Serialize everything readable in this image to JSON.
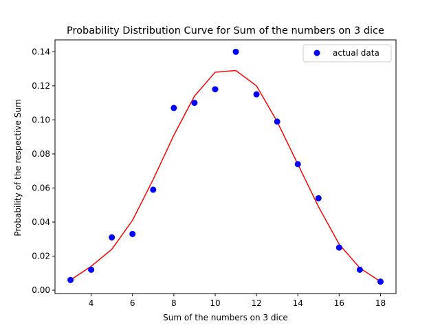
{
  "chart_data": {
    "type": "scatter",
    "title": "Probability Distribution Curve for Sum of the numbers on 3 dice",
    "xlabel": "Sum of the numbers on 3 dice",
    "ylabel": "Probability of the respective Sum",
    "xlim": [
      2.25,
      18.75
    ],
    "ylim": [
      -0.002,
      0.147
    ],
    "xticks": [
      4,
      6,
      8,
      10,
      12,
      14,
      16,
      18
    ],
    "yticks": [
      0.0,
      0.02,
      0.04,
      0.06,
      0.08,
      0.1,
      0.12,
      0.14
    ],
    "ytick_labels": [
      "0.00",
      "0.02",
      "0.04",
      "0.06",
      "0.08",
      "0.10",
      "0.12",
      "0.14"
    ],
    "grid": false,
    "legend": {
      "placement": "top-right",
      "entries": [
        "actual data"
      ]
    },
    "series": [
      {
        "name": "actual data",
        "kind": "scatter",
        "color": "#0000ff",
        "x": [
          3,
          4,
          5,
          6,
          7,
          8,
          9,
          10,
          11,
          12,
          13,
          14,
          15,
          16,
          17,
          18
        ],
        "y": [
          0.006,
          0.012,
          0.031,
          0.033,
          0.059,
          0.107,
          0.11,
          0.118,
          0.14,
          0.115,
          0.099,
          0.074,
          0.054,
          0.025,
          0.012,
          0.005
        ]
      },
      {
        "kind": "line",
        "color": "#ff0000",
        "x": [
          3,
          4,
          5,
          6,
          7,
          8,
          9,
          10,
          11,
          12,
          13,
          14,
          15,
          16,
          17,
          18
        ],
        "y": [
          0.006,
          0.014,
          0.024,
          0.041,
          0.065,
          0.091,
          0.114,
          0.128,
          0.129,
          0.12,
          0.099,
          0.074,
          0.049,
          0.027,
          0.013,
          0.005
        ]
      }
    ]
  }
}
